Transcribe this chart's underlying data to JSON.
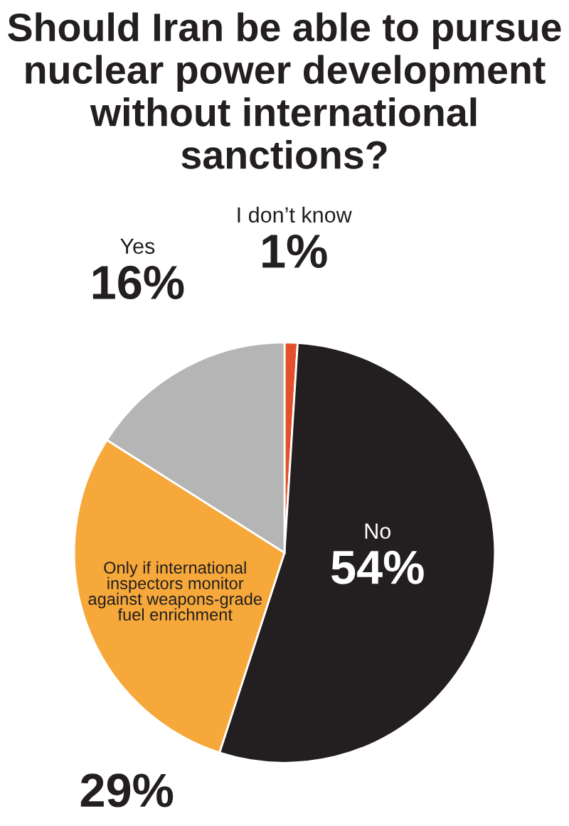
{
  "chart_data": {
    "type": "pie",
    "title": "Should Iran be able to pursue nuclear power development without international sanctions?",
    "categories": [
      "I don’t know",
      "No",
      "Only if international\ninspectors monitor\nagainst weapons-grade\nfuel enrichment",
      "Yes"
    ],
    "values": [
      1,
      54,
      29,
      16
    ],
    "colors": [
      "#e4502b",
      "#231f20",
      "#f6a83a",
      "#b5b5b5"
    ],
    "value_labels": [
      "1%",
      "54%",
      "29%",
      "16%"
    ]
  }
}
